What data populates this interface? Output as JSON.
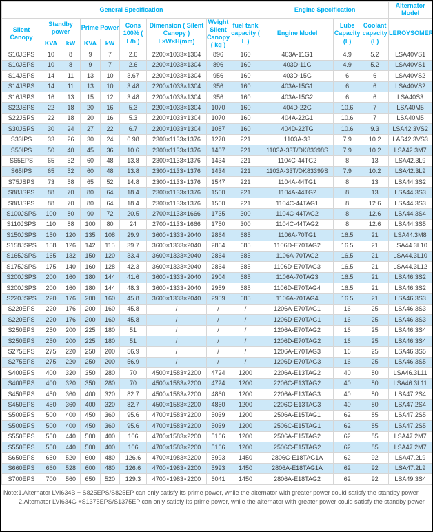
{
  "header": {
    "groups": [
      {
        "label": "General Specification"
      },
      {
        "label": "Engine Specification"
      },
      {
        "label": "Alternator Model"
      }
    ],
    "columns": {
      "silent_canopy": "Silent Canopy",
      "standby_power": "Standby power",
      "prime_power": "Prime Power",
      "standby_kva": "KVA",
      "standby_kw": "kW",
      "prime_kva": "KVA",
      "prime_kw": "kW",
      "cons": "Cons 100% ( L/h )",
      "dimension": "Dimension ( Silent Canopy ) L×W×H(mm)",
      "weight": "Weight Silent Canopy ( kg )",
      "fuel_tank": "fuel tank capacity ( L )",
      "engine_model": "Engine Model",
      "lube": "Lube Capacity (L)",
      "coolant": "Coolant capacity (L)",
      "alternator": "LEROYSOMER"
    }
  },
  "column_keys": [
    "model",
    "standby-kva",
    "standby-kw",
    "prime-kva",
    "prime-kw",
    "cons",
    "dimension",
    "weight",
    "fuel-tank",
    "engine-model",
    "lube-capacity",
    "coolant-capacity",
    "alternator"
  ],
  "rows": [
    [
      "S10JSPS",
      "10",
      "8",
      "9",
      "7",
      "2.6",
      "2200×1033×1304",
      "896",
      "160",
      "403A-11G1",
      "4.9",
      "5.2",
      "LSA40VS1"
    ],
    [
      "S10JSPS",
      "10",
      "8",
      "9",
      "7",
      "2.6",
      "2200×1033×1304",
      "896",
      "160",
      "403D-11G",
      "4.9",
      "5.2",
      "LSA40VS1"
    ],
    [
      "S14JSPS",
      "14",
      "11",
      "13",
      "10",
      "3.67",
      "2200×1033×1304",
      "956",
      "160",
      "403D-15G",
      "6",
      "6",
      "LSA40VS2"
    ],
    [
      "S14JSPS",
      "14",
      "11",
      "13",
      "10",
      "3.48",
      "2200×1033×1304",
      "956",
      "160",
      "403A-15G1",
      "6",
      "6",
      "LSA40VS2"
    ],
    [
      "S16JSPS",
      "16",
      "13",
      "15",
      "12",
      "3.48",
      "2200×1033×1304",
      "956",
      "160",
      "403A-15G2",
      "6",
      "6",
      "LSA40S3"
    ],
    [
      "S22JSPS",
      "22",
      "18",
      "20",
      "16",
      "5.3",
      "2200×1033×1304",
      "1070",
      "160",
      "404D-22G",
      "10.6",
      "7",
      "LSA40M5"
    ],
    [
      "S22JSPS",
      "22",
      "18",
      "20",
      "16",
      "5.3",
      "2200×1033×1304",
      "1070",
      "160",
      "404A-22G1",
      "10.6",
      "7",
      "LSA40M5"
    ],
    [
      "S30JSPS",
      "30",
      "24",
      "27",
      "22",
      "6.7",
      "2200×1033×1304",
      "1087",
      "160",
      "404D-22TG",
      "10.6",
      "9.3",
      "LSA42.3VS2"
    ],
    [
      "S33IPS",
      "33",
      "26",
      "30",
      "24",
      "6.98",
      "2300×1133×1376",
      "1270",
      "221",
      "1103A-33",
      "7.9",
      "10.2",
      "LAS42.3VS3"
    ],
    [
      "S50IPS",
      "50",
      "40",
      "45",
      "36",
      "10.6",
      "2300×1133×1376",
      "1407",
      "221",
      "1103A-33T/DK83398S",
      "7.9",
      "10.2",
      "LSA42.3M7"
    ],
    [
      "S65EPS",
      "65",
      "52",
      "60",
      "48",
      "13.8",
      "2300×1133×1376",
      "1434",
      "221",
      "1104C-44TG2",
      "8",
      "13",
      "LSA42.3L9"
    ],
    [
      "S65IPS",
      "65",
      "52",
      "60",
      "48",
      "13.8",
      "2300×1133×1376",
      "1434",
      "221",
      "1103A-33T/DK83399S",
      "7.9",
      "10.2",
      "LSA42.3L9"
    ],
    [
      "S75JSPS",
      "73",
      "58",
      "65",
      "52",
      "14.8",
      "2300×1133×1376",
      "1547",
      "221",
      "1104A-44TG1",
      "8",
      "13",
      "LSA44.3S2"
    ],
    [
      "S88JSPS",
      "88",
      "70",
      "80",
      "64",
      "18.4",
      "2300×1133×1376",
      "1560",
      "221",
      "1104A-44TG2",
      "8",
      "13",
      "LSA44.3S3"
    ],
    [
      "S88JSPS",
      "88",
      "70",
      "80",
      "64",
      "18.4",
      "2300×1133×1376",
      "1560",
      "221",
      "1104C-44TAG1",
      "8",
      "12.6",
      "LSA44.3S3"
    ],
    [
      "S100JSPS",
      "100",
      "80",
      "90",
      "72",
      "20.5",
      "2700×1133×1666",
      "1735",
      "300",
      "1104C-44TAG2",
      "8",
      "12.6",
      "LSA44.3S4"
    ],
    [
      "S110JSPS",
      "110",
      "88",
      "100",
      "80",
      "24",
      "2700×1133×1666",
      "1750",
      "300",
      "1104C-44TAG2",
      "8",
      "12.6",
      "LSA44.3S5"
    ],
    [
      "S150JSPS",
      "150",
      "120",
      "135",
      "108",
      "29.9",
      "3600×1333×2040",
      "2864",
      "685",
      "1106A-70TG1",
      "16.5",
      "21",
      "LSA44.3M8"
    ],
    [
      "S158JSPS",
      "158",
      "126",
      "142",
      "115",
      "39.7",
      "3600×1333×2040",
      "2864",
      "685",
      "1106D-E70TAG2",
      "16.5",
      "21",
      "LSA44.3L10"
    ],
    [
      "S165JSPS",
      "165",
      "132",
      "150",
      "120",
      "33.4",
      "3600×1333×2040",
      "2864",
      "685",
      "1106A-70TAG2",
      "16.5",
      "21",
      "LSA44.3L10"
    ],
    [
      "S175JSPS",
      "175",
      "140",
      "160",
      "128",
      "42.3",
      "3600×1333×2040",
      "2864",
      "685",
      "1106D-E70TAG3",
      "16.5",
      "21",
      "LSA44.3L12"
    ],
    [
      "S200JSPS",
      "200",
      "160",
      "180",
      "144",
      "41.6",
      "3600×1333×2040",
      "2904",
      "685",
      "1106A-70TAG3",
      "16.5",
      "21",
      "LSA46.3S2"
    ],
    [
      "S200JSPS",
      "200",
      "160",
      "180",
      "144",
      "48.3",
      "3600×1333×2040",
      "2959",
      "685",
      "1106D-E70TAG4",
      "16.5",
      "21",
      "LSA46.3S2"
    ],
    [
      "S220JSPS",
      "220",
      "176",
      "200",
      "160",
      "45.8",
      "3600×1333×2040",
      "2959",
      "685",
      "1106A-70TAG4",
      "16.5",
      "21",
      "LSA46.3S3"
    ],
    [
      "S220EPS",
      "220",
      "176",
      "200",
      "160",
      "45.8",
      "/",
      "/",
      "/",
      "1206A-E70TAG1",
      "16",
      "25",
      "LSA46.3S3"
    ],
    [
      "S220EPS",
      "220",
      "176",
      "200",
      "160",
      "45.8",
      "/",
      "/",
      "/",
      "1206D-E70TAG1",
      "16",
      "25",
      "LSA46.3S3"
    ],
    [
      "S250EPS",
      "250",
      "200",
      "225",
      "180",
      "51",
      "/",
      "/",
      "/",
      "1206A-E70TAG2",
      "16",
      "25",
      "LSA46.3S4"
    ],
    [
      "S250EPS",
      "250",
      "200",
      "225",
      "180",
      "51",
      "/",
      "/",
      "/",
      "1206D-E70TAG2",
      "16",
      "25",
      "LSA46.3S4"
    ],
    [
      "S275EPS",
      "275",
      "220",
      "250",
      "200",
      "56.9",
      "/",
      "/",
      "/",
      "1206A-E70TAG3",
      "16",
      "25",
      "LSA46.3S5"
    ],
    [
      "S275EPS",
      "275",
      "220",
      "250",
      "200",
      "56.9",
      "/",
      "/",
      "/",
      "1206D-E70TAG3",
      "16",
      "25",
      "LSA46.3S5"
    ],
    [
      "S400EPS",
      "400",
      "320",
      "350",
      "280",
      "70",
      "4500×1583×2200",
      "4724",
      "1200",
      "2206A-E13TAG2",
      "40",
      "80",
      "LSA46.3L11"
    ],
    [
      "S400EPS",
      "400",
      "320",
      "350",
      "280",
      "70",
      "4500×1583×2200",
      "4724",
      "1200",
      "2206C-E13TAG2",
      "40",
      "80",
      "LSA46.3L11"
    ],
    [
      "S450EPS",
      "450",
      "360",
      "400",
      "320",
      "82.7",
      "4500×1583×2200",
      "4860",
      "1200",
      "2206A-E13TAG3",
      "40",
      "80",
      "LSA47.2S4"
    ],
    [
      "S450EPS",
      "450",
      "360",
      "400",
      "320",
      "82.7",
      "4500×1583×2200",
      "4860",
      "1200",
      "2206C-E13TAG3",
      "40",
      "80",
      "LSA47.2S4"
    ],
    [
      "S500EPS",
      "500",
      "400",
      "450",
      "360",
      "95.6",
      "4700×1583×2200",
      "5039",
      "1200",
      "2506A-E15TAG1",
      "62",
      "85",
      "LSA47.2S5"
    ],
    [
      "S500EPS",
      "500",
      "400",
      "450",
      "360",
      "95.6",
      "4700×1583×2200",
      "5039",
      "1200",
      "2506C-E15TAG1",
      "62",
      "85",
      "LSA47.2S5"
    ],
    [
      "S550EPS",
      "550",
      "440",
      "500",
      "400",
      "106",
      "4700×1583×2200",
      "5166",
      "1200",
      "2506A-E15TAG2",
      "62",
      "85",
      "LSA47.2M7"
    ],
    [
      "S550EPS",
      "550",
      "440",
      "500",
      "400",
      "106",
      "4700×1583×2200",
      "5166",
      "1200",
      "2506C-E15TAG2",
      "62",
      "85",
      "LSA47.2M7"
    ],
    [
      "S650EPS",
      "650",
      "520",
      "600",
      "480",
      "126.6",
      "4700×1983×2200",
      "5993",
      "1450",
      "2806C-E18TAG1A",
      "62",
      "92",
      "LSA47.2L9"
    ],
    [
      "S660EPS",
      "660",
      "528",
      "600",
      "480",
      "126.6",
      "4700×1983×2200",
      "5993",
      "1450",
      "2806A-E18TAG1A",
      "62",
      "92",
      "LSA47.2L9"
    ],
    [
      "S700EPS",
      "700",
      "560",
      "650",
      "520",
      "129.3",
      "4700×1983×2200",
      "6041",
      "1450",
      "2806A-E18TAG2",
      "62",
      "92",
      "LSA49.3S4"
    ]
  ],
  "notes": [
    "Note:1.Alternator LVI634B + S825EPS/S825EP can only satisfy its prime power, while the alternator with greater power could satisfy the standby power.",
    "2.Alternator LVI634G +S1375EPS/S1375EP can only satisfy its prime power, while the alternator with greater power could satisfy the standby power."
  ],
  "colors": {
    "accent": "#00b0f0",
    "stripe": "#cde8f8",
    "grid": "#d6d6d6",
    "body_text": "#404040",
    "note_text": "#595959"
  }
}
